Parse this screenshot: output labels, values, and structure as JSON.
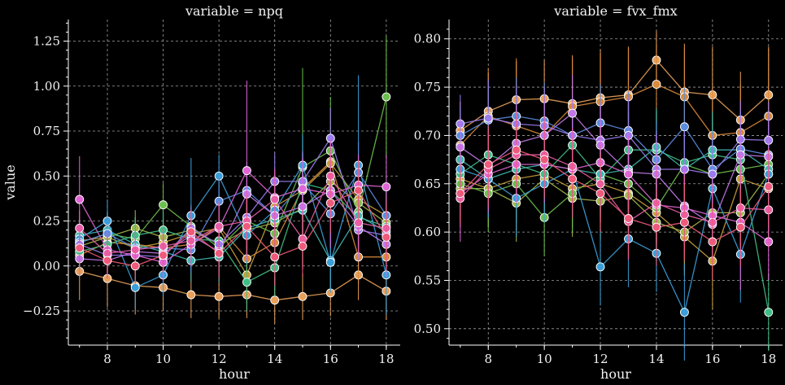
{
  "chart_data": [
    {
      "type": "line",
      "title": "variable = npq",
      "xlabel": "hour",
      "ylabel": "value",
      "xlim": [
        6.6,
        18.5
      ],
      "ylim": [
        -0.44,
        1.37
      ],
      "xticks": [
        8,
        10,
        12,
        14,
        16,
        18
      ],
      "yticks": [
        -0.25,
        0.0,
        0.25,
        0.5,
        0.75,
        1.0,
        1.25
      ],
      "ytick_labels": [
        "−0.25",
        "0.00",
        "0.25",
        "0.50",
        "0.75",
        "1.00",
        "1.25"
      ],
      "grid": true,
      "x": [
        7,
        8,
        9,
        10,
        11,
        12,
        13,
        14,
        15,
        16,
        17,
        18
      ],
      "series": [
        {
          "color": "#e8a05a",
          "values": [
            -0.03,
            -0.07,
            -0.11,
            -0.12,
            -0.16,
            -0.17,
            -0.16,
            -0.19,
            -0.17,
            -0.15,
            -0.05,
            -0.14
          ],
          "err": [
            0.16,
            0.16,
            0.16,
            0.13,
            0.13,
            0.12,
            0.13,
            0.13,
            0.13,
            0.13,
            0.14,
            0.16
          ]
        },
        {
          "color": "#d98a3a",
          "values": [
            0.06,
            0.13,
            0.12,
            0.1,
            0.12,
            0.22,
            0.04,
            0.13,
            0.43,
            0.58,
            0.05,
            0.05
          ],
          "err": [
            0.1,
            0.1,
            0.1,
            0.1,
            0.11,
            0.14,
            0.15,
            0.15,
            0.15,
            0.15,
            0.15,
            0.15
          ]
        },
        {
          "color": "#c9a13a",
          "values": [
            0.14,
            0.16,
            0.1,
            0.13,
            0.18,
            0.21,
            -0.05,
            0.33,
            0.42,
            0.57,
            0.37,
            0.28
          ],
          "err": [
            0.1,
            0.1,
            0.1,
            0.1,
            0.12,
            0.14,
            0.16,
            0.16,
            0.17,
            0.17,
            0.17,
            0.18
          ]
        },
        {
          "color": "#a3b84a",
          "values": [
            0.11,
            0.16,
            0.21,
            0.16,
            0.2,
            0.12,
            0.2,
            0.24,
            0.32,
            0.47,
            0.35,
            0.24
          ],
          "err": [
            0.1,
            0.1,
            0.1,
            0.1,
            0.12,
            0.14,
            0.16,
            0.16,
            0.17,
            0.17,
            0.17,
            0.18
          ]
        },
        {
          "color": "#6cbf4e",
          "values": [
            0.13,
            0.18,
            0.15,
            0.34,
            0.22,
            0.1,
            0.25,
            0.18,
            0.55,
            0.64,
            0.3,
            0.94
          ],
          "err": [
            0.1,
            0.12,
            0.12,
            0.12,
            0.12,
            0.14,
            0.16,
            0.16,
            0.55,
            0.3,
            0.2,
            0.34
          ]
        },
        {
          "color": "#3fbf86",
          "values": [
            0.08,
            0.12,
            0.17,
            0.2,
            0.15,
            0.14,
            -0.09,
            -0.01,
            0.46,
            0.42,
            0.27,
            0.22
          ],
          "err": [
            0.1,
            0.1,
            0.1,
            0.1,
            0.12,
            0.14,
            0.16,
            0.16,
            0.17,
            0.17,
            0.17,
            0.18
          ]
        },
        {
          "color": "#3fb8b0",
          "values": [
            0.17,
            0.2,
            0.12,
            0.08,
            0.03,
            0.05,
            0.21,
            0.26,
            0.31,
            0.03,
            0.28,
            0.19
          ],
          "err": [
            0.1,
            0.1,
            0.1,
            0.1,
            0.12,
            0.14,
            0.16,
            0.16,
            0.17,
            0.17,
            0.17,
            0.18
          ]
        },
        {
          "color": "#3a9fd9",
          "values": [
            0.15,
            0.25,
            -0.12,
            -0.05,
            0.28,
            0.5,
            0.17,
            0.31,
            0.56,
            0.02,
            0.56,
            -0.05
          ],
          "err": [
            0.1,
            0.12,
            0.12,
            0.12,
            0.32,
            0.12,
            0.16,
            0.16,
            0.17,
            0.17,
            0.5,
            0.22
          ]
        },
        {
          "color": "#5b8de0",
          "values": [
            0.13,
            0.18,
            0.1,
            0.1,
            0.09,
            0.36,
            0.42,
            0.28,
            0.46,
            0.29,
            0.52,
            0.28
          ],
          "err": [
            0.1,
            0.1,
            0.1,
            0.1,
            0.12,
            0.14,
            0.16,
            0.16,
            0.17,
            0.17,
            0.17,
            0.18
          ]
        },
        {
          "color": "#9b7bef",
          "values": [
            0.12,
            0.06,
            0.06,
            0.05,
            0.21,
            0.12,
            0.27,
            0.47,
            0.47,
            0.71,
            0.2,
            0.17
          ],
          "err": [
            0.1,
            0.1,
            0.1,
            0.1,
            0.12,
            0.14,
            0.16,
            0.16,
            0.17,
            0.17,
            0.17,
            0.18
          ]
        },
        {
          "color": "#c177e8",
          "values": [
            0.04,
            0.03,
            0.08,
            0.07,
            0.17,
            0.08,
            0.4,
            0.28,
            0.33,
            0.42,
            0.22,
            0.12
          ],
          "err": [
            0.1,
            0.1,
            0.1,
            0.1,
            0.12,
            0.14,
            0.16,
            0.16,
            0.17,
            0.17,
            0.17,
            0.18
          ]
        },
        {
          "color": "#e066d6",
          "values": [
            0.37,
            0.09,
            0.06,
            0.02,
            0.12,
            0.21,
            0.53,
            0.38,
            0.43,
            0.4,
            0.45,
            0.44
          ],
          "err": [
            0.24,
            0.1,
            0.1,
            0.1,
            0.12,
            0.14,
            0.5,
            0.16,
            0.17,
            0.3,
            0.17,
            0.18
          ]
        },
        {
          "color": "#ea5ea8",
          "values": [
            0.21,
            0.07,
            0.09,
            0.11,
            0.14,
            0.22,
            0.25,
            0.37,
            0.15,
            0.5,
            0.24,
            0.21
          ],
          "err": [
            0.1,
            0.1,
            0.1,
            0.1,
            0.12,
            0.14,
            0.16,
            0.16,
            0.17,
            0.17,
            0.17,
            0.18
          ]
        },
        {
          "color": "#f05a7a",
          "values": [
            0.1,
            0.03,
            0.0,
            0.06,
            0.19,
            0.07,
            0.22,
            0.05,
            0.11,
            0.35,
            0.42,
            0.16
          ],
          "err": [
            0.1,
            0.1,
            0.1,
            0.1,
            0.12,
            0.14,
            0.16,
            0.16,
            0.17,
            0.17,
            0.17,
            0.18
          ]
        }
      ]
    },
    {
      "type": "line",
      "title": "variable = fvx_fmx",
      "xlabel": "hour",
      "ylabel": "",
      "xlim": [
        6.6,
        18.5
      ],
      "ylim": [
        0.483,
        0.82
      ],
      "xticks": [
        8,
        10,
        12,
        14,
        16,
        18
      ],
      "yticks": [
        0.5,
        0.55,
        0.6,
        0.65,
        0.7,
        0.75,
        0.8
      ],
      "ytick_labels": [
        "0.50",
        "0.55",
        "0.60",
        "0.65",
        "0.70",
        "0.75",
        "0.80"
      ],
      "grid": true,
      "x": [
        7,
        8,
        9,
        10,
        11,
        12,
        13,
        14,
        15,
        16,
        17,
        18
      ],
      "series": [
        {
          "color": "#e8a05a",
          "values": [
            0.705,
            0.725,
            0.737,
            0.738,
            0.733,
            0.739,
            0.742,
            0.778,
            0.745,
            0.742,
            0.716,
            0.742
          ],
          "err": [
            0.03,
            0.04,
            0.04,
            0.04,
            0.05,
            0.05,
            0.05,
            0.03,
            0.05,
            0.05,
            0.05,
            0.05
          ]
        },
        {
          "color": "#d98a3a",
          "values": [
            0.69,
            0.72,
            0.71,
            0.7,
            0.73,
            0.735,
            0.74,
            0.753,
            0.74,
            0.7,
            0.703,
            0.72
          ],
          "err": [
            0.03,
            0.05,
            0.07,
            0.05,
            0.05,
            0.05,
            0.05,
            0.04,
            0.05,
            0.05,
            0.05,
            0.07
          ]
        },
        {
          "color": "#c9a13a",
          "values": [
            0.655,
            0.645,
            0.655,
            0.66,
            0.645,
            0.65,
            0.64,
            0.62,
            0.595,
            0.57,
            0.655,
            0.645
          ],
          "err": [
            0.03,
            0.04,
            0.04,
            0.04,
            0.04,
            0.04,
            0.04,
            0.04,
            0.04,
            0.05,
            0.05,
            0.05
          ]
        },
        {
          "color": "#a3b84a",
          "values": [
            0.645,
            0.645,
            0.63,
            0.655,
            0.635,
            0.632,
            0.638,
            0.61,
            0.6,
            0.62,
            0.62,
            0.66
          ],
          "err": [
            0.03,
            0.04,
            0.04,
            0.04,
            0.04,
            0.04,
            0.04,
            0.04,
            0.04,
            0.04,
            0.04,
            0.04
          ]
        },
        {
          "color": "#6cbf4e",
          "values": [
            0.65,
            0.64,
            0.65,
            0.615,
            0.64,
            0.66,
            0.65,
            0.625,
            0.67,
            0.66,
            0.665,
            0.67
          ],
          "err": [
            0.03,
            0.04,
            0.04,
            0.04,
            0.04,
            0.04,
            0.04,
            0.04,
            0.04,
            0.04,
            0.04,
            0.04
          ]
        },
        {
          "color": "#3fbf86",
          "values": [
            0.66,
            0.68,
            0.67,
            0.66,
            0.69,
            0.655,
            0.685,
            0.685,
            0.672,
            0.68,
            0.675,
            0.517
          ],
          "err": [
            0.03,
            0.04,
            0.04,
            0.04,
            0.04,
            0.04,
            0.04,
            0.04,
            0.04,
            0.04,
            0.04,
            0.04
          ]
        },
        {
          "color": "#3fb8b0",
          "values": [
            0.675,
            0.655,
            0.665,
            0.67,
            0.665,
            0.66,
            0.665,
            0.688,
            0.665,
            0.685,
            0.685,
            0.665
          ],
          "err": [
            0.03,
            0.04,
            0.04,
            0.04,
            0.04,
            0.04,
            0.04,
            0.04,
            0.04,
            0.04,
            0.04,
            0.04
          ]
        },
        {
          "color": "#3a9fd9",
          "values": [
            0.665,
            0.655,
            0.635,
            0.65,
            0.665,
            0.564,
            0.593,
            0.578,
            0.517,
            0.645,
            0.577,
            0.66
          ],
          "err": [
            0.03,
            0.04,
            0.04,
            0.04,
            0.05,
            0.04,
            0.05,
            0.04,
            0.05,
            0.05,
            0.05,
            0.05
          ]
        },
        {
          "color": "#5b8de0",
          "values": [
            0.7,
            0.716,
            0.72,
            0.715,
            0.7,
            0.713,
            0.705,
            0.675,
            0.709,
            0.665,
            0.686,
            0.68
          ],
          "err": [
            0.03,
            0.04,
            0.04,
            0.04,
            0.04,
            0.04,
            0.04,
            0.04,
            0.04,
            0.04,
            0.04,
            0.04
          ]
        },
        {
          "color": "#9b7bef",
          "values": [
            0.712,
            0.718,
            0.712,
            0.71,
            0.7,
            0.695,
            0.7,
            0.665,
            0.665,
            0.66,
            0.696,
            0.695
          ],
          "err": [
            0.03,
            0.04,
            0.04,
            0.04,
            0.04,
            0.04,
            0.04,
            0.04,
            0.04,
            0.04,
            0.04,
            0.04
          ]
        },
        {
          "color": "#c177e8",
          "values": [
            0.688,
            0.668,
            0.692,
            0.7,
            0.723,
            0.69,
            0.662,
            0.66,
            0.627,
            0.608,
            0.68,
            0.678
          ],
          "err": [
            0.03,
            0.04,
            0.04,
            0.04,
            0.04,
            0.04,
            0.04,
            0.04,
            0.04,
            0.04,
            0.04,
            0.04
          ]
        },
        {
          "color": "#e066d6",
          "values": [
            0.64,
            0.66,
            0.67,
            0.67,
            0.665,
            0.672,
            0.66,
            0.628,
            0.625,
            0.617,
            0.61,
            0.59
          ],
          "err": [
            0.05,
            0.04,
            0.04,
            0.04,
            0.04,
            0.04,
            0.04,
            0.04,
            0.04,
            0.04,
            0.07,
            0.04
          ]
        },
        {
          "color": "#ea5ea8",
          "values": [
            0.635,
            0.665,
            0.68,
            0.68,
            0.668,
            0.65,
            0.611,
            0.63,
            0.618,
            0.61,
            0.625,
            0.623
          ],
          "err": [
            0.03,
            0.04,
            0.04,
            0.04,
            0.04,
            0.04,
            0.04,
            0.04,
            0.04,
            0.04,
            0.04,
            0.04
          ]
        },
        {
          "color": "#f05a7a",
          "values": [
            0.64,
            0.67,
            0.685,
            0.675,
            0.655,
            0.64,
            0.614,
            0.605,
            0.61,
            0.59,
            0.605,
            0.647
          ],
          "err": [
            0.03,
            0.04,
            0.04,
            0.04,
            0.04,
            0.04,
            0.04,
            0.04,
            0.04,
            0.04,
            0.04,
            0.04
          ]
        }
      ]
    }
  ]
}
